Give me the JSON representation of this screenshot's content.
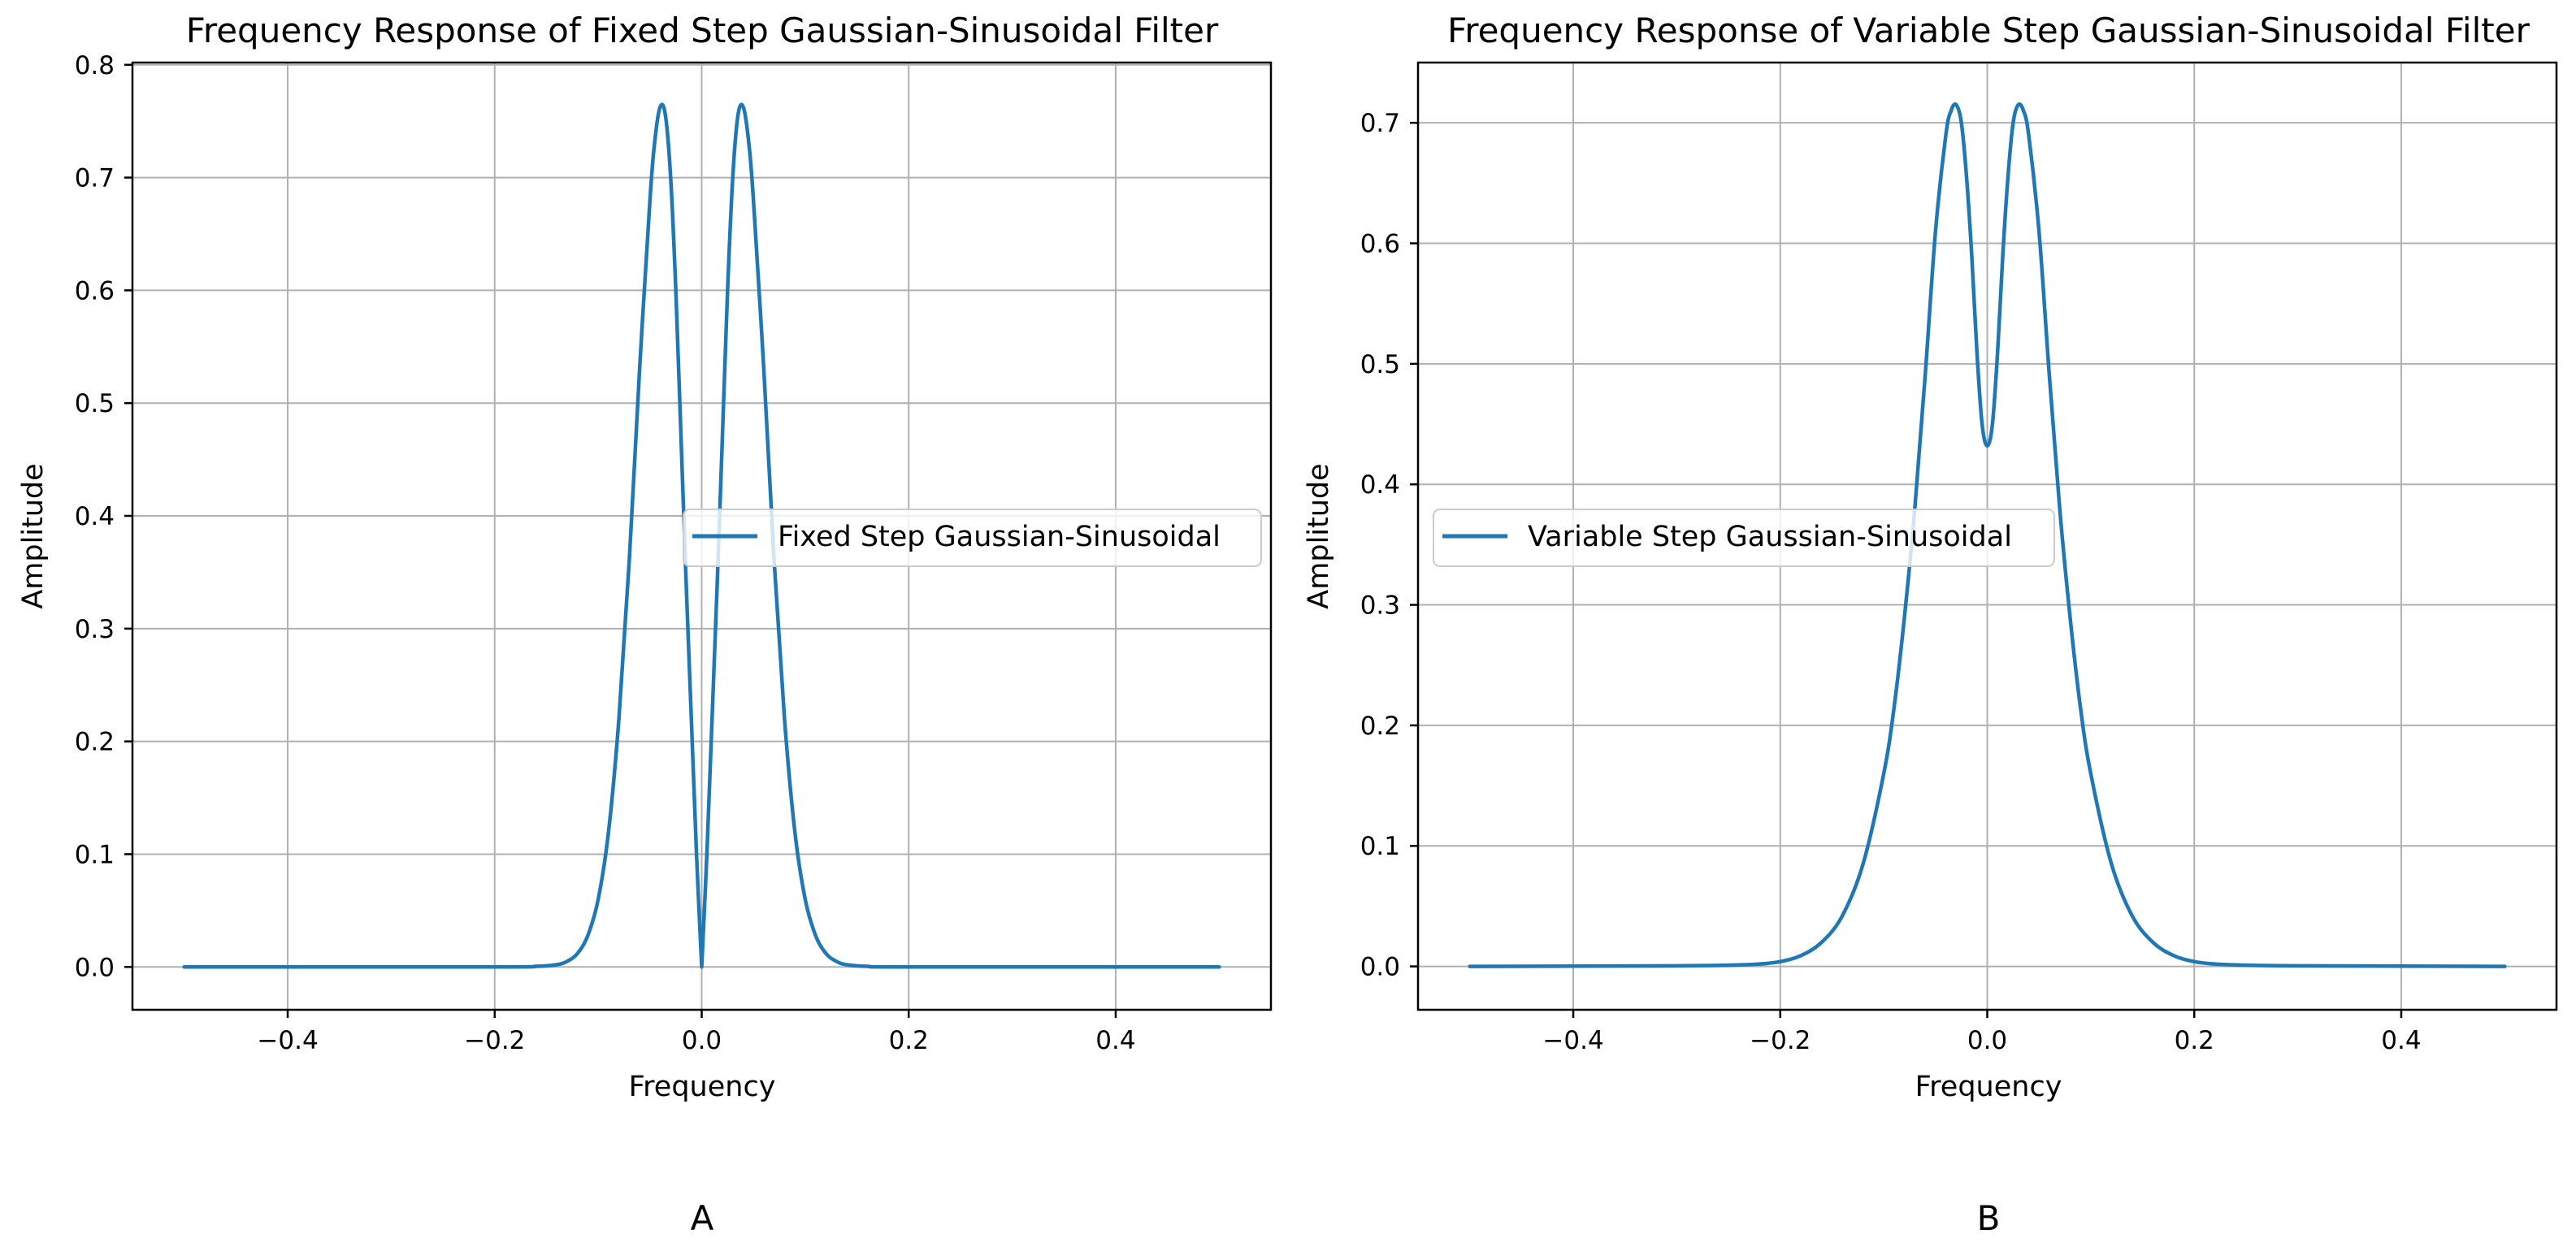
{
  "chart_data": [
    {
      "type": "line",
      "title": "Frequency Response of Fixed Step Gaussian-Sinusoidal Filter",
      "xlabel": "Frequency",
      "ylabel": "Amplitude",
      "xlim": [
        -0.55,
        0.55
      ],
      "ylim": [
        -0.038,
        0.802
      ],
      "xticks": [
        -0.4,
        -0.2,
        0.0,
        0.2,
        0.4
      ],
      "xtick_labels": [
        "−0.4",
        "−0.2",
        "0.0",
        "0.2",
        "0.4"
      ],
      "yticks": [
        0.0,
        0.1,
        0.2,
        0.3,
        0.4,
        0.5,
        0.6,
        0.7,
        0.8
      ],
      "ytick_labels": [
        "0.0",
        "0.1",
        "0.2",
        "0.3",
        "0.4",
        "0.5",
        "0.6",
        "0.7",
        "0.8"
      ],
      "grid": true,
      "legend_position": "center-right",
      "panel_label": "A",
      "series": [
        {
          "name": "Fixed Step Gaussian-Sinusoidal",
          "color": "#1f77b4",
          "x": [
            -0.5,
            -0.2,
            -0.16,
            -0.14,
            -0.13,
            -0.12,
            -0.11,
            -0.1,
            -0.09,
            -0.08,
            -0.07,
            -0.06,
            -0.05,
            -0.045,
            -0.04,
            -0.035,
            -0.03,
            -0.025,
            -0.02,
            -0.015,
            -0.01,
            -0.005,
            0.0,
            0.005,
            0.01,
            0.015,
            0.02,
            0.025,
            0.03,
            0.035,
            0.04,
            0.045,
            0.05,
            0.06,
            0.07,
            0.08,
            0.09,
            0.1,
            0.11,
            0.12,
            0.13,
            0.14,
            0.16,
            0.2,
            0.5
          ],
          "values": [
            0.0,
            0.0,
            0.0005,
            0.002,
            0.005,
            0.012,
            0.028,
            0.06,
            0.12,
            0.22,
            0.36,
            0.53,
            0.68,
            0.735,
            0.763,
            0.755,
            0.7,
            0.6,
            0.47,
            0.34,
            0.22,
            0.1,
            0.0,
            0.1,
            0.22,
            0.34,
            0.47,
            0.6,
            0.7,
            0.755,
            0.763,
            0.735,
            0.68,
            0.53,
            0.36,
            0.22,
            0.12,
            0.06,
            0.028,
            0.012,
            0.005,
            0.002,
            0.0005,
            0.0,
            0.0
          ]
        }
      ]
    },
    {
      "type": "line",
      "title": "Frequency Response of Variable Step Gaussian-Sinusoidal Filter",
      "xlabel": "Frequency",
      "ylabel": "Amplitude",
      "xlim": [
        -0.55,
        0.55
      ],
      "ylim": [
        -0.036,
        0.75
      ],
      "xticks": [
        -0.4,
        -0.2,
        0.0,
        0.2,
        0.4
      ],
      "xtick_labels": [
        "−0.4",
        "−0.2",
        "0.0",
        "0.2",
        "0.4"
      ],
      "yticks": [
        0.0,
        0.1,
        0.2,
        0.3,
        0.4,
        0.5,
        0.6,
        0.7
      ],
      "ytick_labels": [
        "0.0",
        "0.1",
        "0.2",
        "0.3",
        "0.4",
        "0.5",
        "0.6",
        "0.7"
      ],
      "grid": true,
      "legend_position": "center-left",
      "panel_label": "B",
      "series": [
        {
          "name": "Variable Step Gaussian-Sinusoidal",
          "color": "#1f77b4",
          "x": [
            -0.5,
            -0.3,
            -0.25,
            -0.22,
            -0.2,
            -0.18,
            -0.16,
            -0.14,
            -0.12,
            -0.1,
            -0.09,
            -0.08,
            -0.07,
            -0.06,
            -0.05,
            -0.04,
            -0.035,
            -0.03,
            -0.025,
            -0.02,
            -0.015,
            -0.01,
            -0.005,
            0.0,
            0.005,
            0.01,
            0.015,
            0.02,
            0.025,
            0.03,
            0.035,
            0.04,
            0.05,
            0.06,
            0.07,
            0.08,
            0.09,
            0.1,
            0.12,
            0.14,
            0.16,
            0.18,
            0.2,
            0.22,
            0.25,
            0.3,
            0.5
          ],
          "values": [
            0.0,
            0.0005,
            0.001,
            0.002,
            0.004,
            0.009,
            0.02,
            0.042,
            0.085,
            0.16,
            0.215,
            0.29,
            0.38,
            0.49,
            0.61,
            0.69,
            0.71,
            0.715,
            0.7,
            0.655,
            0.59,
            0.51,
            0.45,
            0.432,
            0.45,
            0.51,
            0.59,
            0.655,
            0.7,
            0.715,
            0.71,
            0.69,
            0.61,
            0.49,
            0.38,
            0.29,
            0.215,
            0.16,
            0.085,
            0.042,
            0.02,
            0.009,
            0.004,
            0.002,
            0.001,
            0.0005,
            0.0
          ]
        }
      ]
    }
  ]
}
